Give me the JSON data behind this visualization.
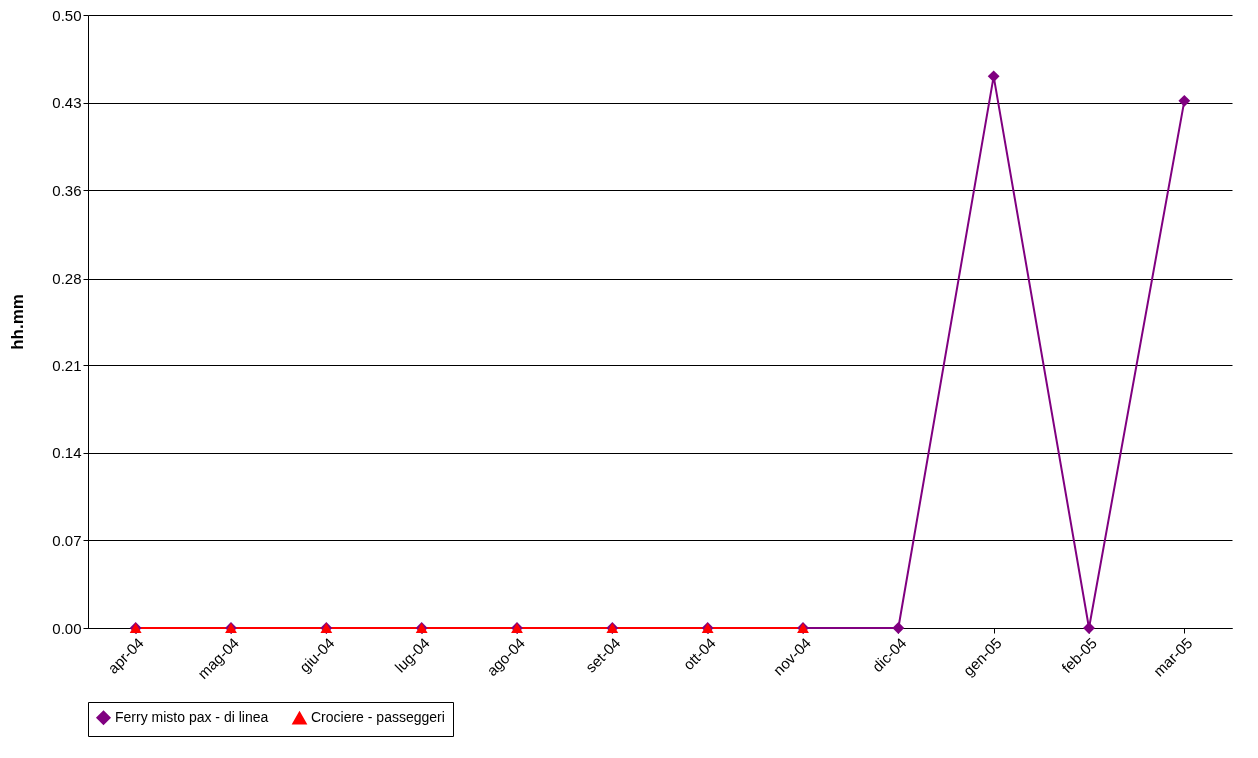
{
  "chart_data": {
    "type": "line",
    "ylabel": "hh.mm",
    "categories": [
      "apr-04",
      "mag-04",
      "giu-04",
      "lug-04",
      "ago-04",
      "set-04",
      "ott-04",
      "nov-04",
      "dic-04",
      "gen-05",
      "feb-05",
      "mar-05"
    ],
    "series": [
      {
        "name": "Ferry misto pax - di linea",
        "color": "#800080",
        "marker": "diamond",
        "values": [
          0,
          0,
          0,
          0,
          0,
          0,
          0,
          0,
          0,
          0.45,
          0,
          0.43
        ]
      },
      {
        "name": "Crociere - passeggeri",
        "color": "#ff0000",
        "marker": "triangle",
        "values": [
          0,
          0,
          0,
          0,
          0,
          0,
          0,
          0,
          null,
          null,
          null,
          null
        ]
      }
    ],
    "ylim": [
      0,
      0.5
    ],
    "yticks": [
      {
        "value": 0,
        "label": "0.00"
      },
      {
        "value": 0.0714286,
        "label": "0.07"
      },
      {
        "value": 0.1428571,
        "label": "0.14"
      },
      {
        "value": 0.2142857,
        "label": "0.21"
      },
      {
        "value": 0.2849,
        "label": "0.28"
      },
      {
        "value": 0.3571429,
        "label": "0.36"
      },
      {
        "value": 0.4285714,
        "label": "0.43"
      },
      {
        "value": 0.5,
        "label": "0.50"
      }
    ],
    "grid": "y",
    "legend": "bottom",
    "line_style": "solid"
  }
}
